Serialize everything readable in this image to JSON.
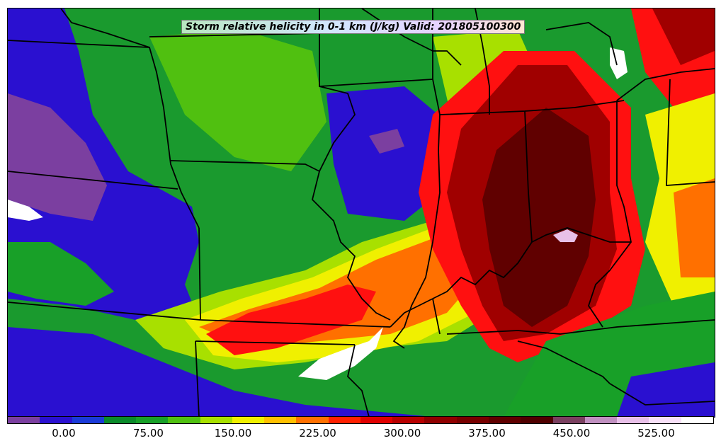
{
  "title": "Storm relative helicity in 0-1 km (J/kg) Valid: 201805100300",
  "colorbar": {
    "colors": [
      "#7b3fa0",
      "#2a10d0",
      "#1a3ad8",
      "#0a8a2a",
      "#18a028",
      "#50c010",
      "#a8e000",
      "#f0f000",
      "#ffc000",
      "#ff7000",
      "#ff2000",
      "#e00000",
      "#b80000",
      "#900000",
      "#780000",
      "#600000",
      "#500000",
      "#7a4060",
      "#c090c0",
      "#e8c0e8",
      "#f8e0f8",
      "#ffffff"
    ],
    "tick_labels": [
      "0.00",
      "75.00",
      "150.00",
      "225.00",
      "300.00",
      "375.00",
      "450.00",
      "525.00"
    ]
  },
  "map": {
    "palette": {
      "background": "#1a9a2e",
      "purple": "#7b3fa0",
      "blue": "#2a10d0",
      "lightgreen": "#50c010",
      "yellowgreen": "#a8e000",
      "yellow": "#f0f000",
      "orange": "#ff7000",
      "red": "#ff1010",
      "darkred": "#a00000",
      "maroon": "#600000",
      "pink": "#e8c0e8",
      "white": "#ffffff",
      "border": "#000000"
    }
  }
}
